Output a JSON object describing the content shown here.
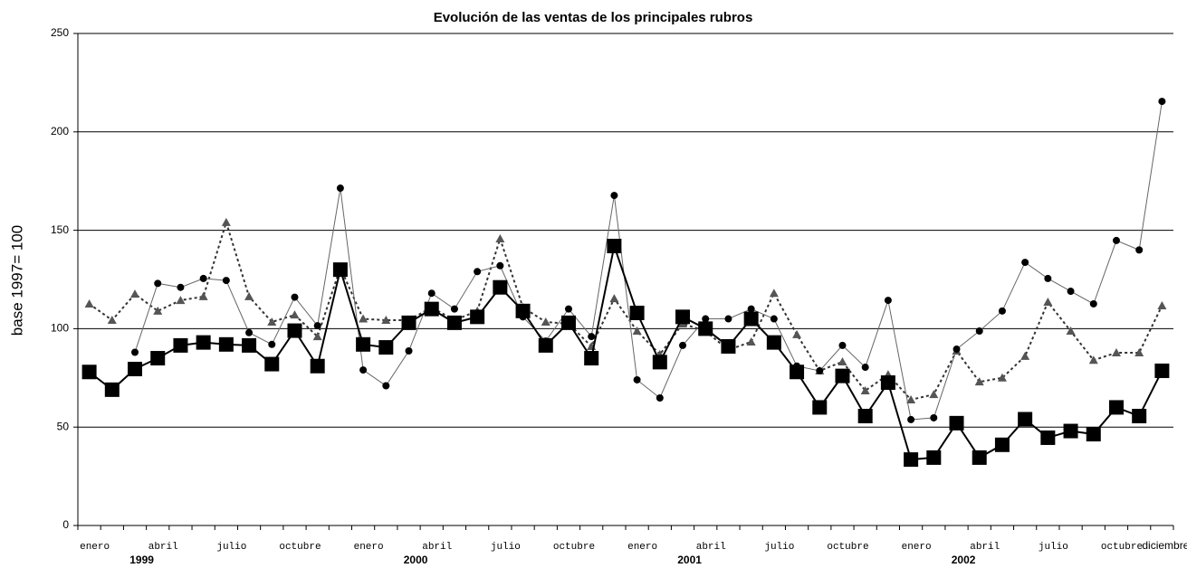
{
  "chart_data": {
    "type": "line",
    "title": "Evolución de las ventas de los principales rubros",
    "y_label": "base 1997= 100",
    "categories": [
      "enero",
      null,
      null,
      "abril",
      null,
      null,
      "julio",
      null,
      null,
      "octubre",
      null,
      null,
      "enero",
      null,
      null,
      "abril",
      null,
      null,
      "julio",
      null,
      null,
      "octubre",
      null,
      null,
      "enero",
      null,
      null,
      "abril",
      null,
      null,
      "julio",
      null,
      null,
      "octubre",
      null,
      null,
      "enero",
      null,
      null,
      "abril",
      null,
      null,
      "julio",
      null,
      null,
      "octubre",
      null,
      "diciembre"
    ],
    "groups": [
      "1999",
      "2000",
      "2001",
      "2002"
    ],
    "ylim": [
      0,
      250
    ],
    "yticks": [
      0,
      50,
      100,
      150,
      200,
      250
    ],
    "grid": true,
    "series": [
      {
        "color": "#000000",
        "line_color": "#000000",
        "marker": "square",
        "dash": "solid",
        "width": 2,
        "values": [
          78,
          69,
          79.5,
          85,
          91.5,
          93,
          92,
          91.5,
          82,
          99,
          81,
          130,
          92,
          90.5,
          103,
          110,
          103,
          106,
          121,
          109,
          91.5,
          103,
          85,
          142,
          108,
          83,
          106,
          100,
          91,
          105,
          93,
          78,
          60,
          76,
          55.6,
          72.6,
          33.5,
          34.5,
          52,
          34.5,
          41,
          54,
          44.6,
          48,
          46.4,
          60,
          55.6,
          78.6
        ]
      },
      {
        "color": "#000000",
        "line_color": "#666666",
        "marker": "circle",
        "dash": "solid",
        "width": 1,
        "values": [
          null,
          null,
          88,
          123,
          121,
          125.5,
          124.5,
          98,
          92,
          116,
          101.5,
          171.4,
          79,
          71,
          88.7,
          118,
          110,
          129,
          132,
          106,
          93.7,
          110,
          96,
          167.7,
          74,
          64.8,
          91.5,
          105,
          105,
          110,
          105,
          81,
          78.6,
          91.5,
          80.4,
          114.4,
          53.8,
          54.7,
          89.6,
          98.8,
          109,
          133.7,
          125.5,
          119,
          112.6,
          144.8,
          140,
          215.5
        ]
      },
      {
        "color": "#555555",
        "line_color": "#333333",
        "marker": "triangle",
        "dash": "dotted",
        "width": 2,
        "values": [
          112.6,
          104.3,
          117.6,
          109,
          114.4,
          116.3,
          154,
          116.3,
          103.4,
          107,
          96,
          131,
          105,
          104.3,
          104.3,
          110.8,
          104.3,
          109,
          145.7,
          110.8,
          103.4,
          102.5,
          91,
          115.3,
          98.8,
          86.9,
          102.5,
          98.8,
          89.2,
          93.3,
          118,
          97,
          78.6,
          83.2,
          68.5,
          76.7,
          63.9,
          66.6,
          88.7,
          73,
          75,
          86,
          113.5,
          98.8,
          84,
          87.8,
          87.8,
          111.7
        ]
      }
    ]
  }
}
